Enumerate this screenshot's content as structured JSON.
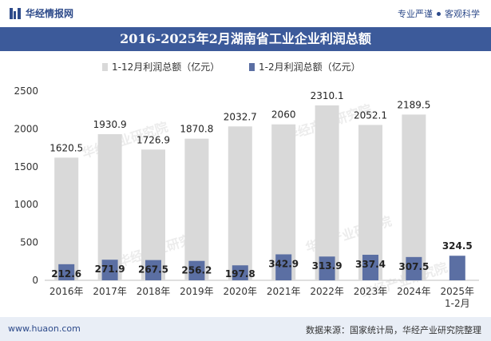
{
  "header": {
    "brand": "华经情报网",
    "slogan_left": "专业严谨",
    "slogan_right": "客观科学"
  },
  "title": "2016-2025年2月湖南省工业企业利润总额",
  "footer": {
    "site": "www.huaon.com",
    "source": "数据来源：国家统计局，华经产业研究院整理"
  },
  "watermark": "华经产业研究院",
  "chart_data": {
    "type": "bar",
    "categories": [
      "2016年",
      "2017年",
      "2018年",
      "2019年",
      "2020年",
      "2021年",
      "2022年",
      "2023年",
      "2024年",
      "2025年\n1-2月"
    ],
    "series": [
      {
        "name": "1-12月利润总额（亿元）",
        "color": "#d9d9d9",
        "values": [
          1620.5,
          1930.9,
          1726.9,
          1870.8,
          2032.7,
          2060,
          2310.1,
          2052.1,
          2189.5,
          null
        ],
        "labels": [
          "1620.5",
          "1930.9",
          "1726.9",
          "1870.8",
          "2032.7",
          "2060",
          "2310.1",
          "2052.1",
          "2189.5",
          ""
        ]
      },
      {
        "name": "1-2月利润总额（亿元）",
        "color": "#5b6fa3",
        "values": [
          212.6,
          271.9,
          267.5,
          256.2,
          197.8,
          342.9,
          313.9,
          337.4,
          307.5,
          324.5
        ],
        "labels": [
          "212.6",
          "271.9",
          "267.5",
          "256.2",
          "197.8",
          "342.9",
          "313.9",
          "337.4",
          "307.5",
          "324.5"
        ]
      }
    ],
    "ylim": [
      0,
      2500
    ],
    "yticks": [
      "0",
      "500",
      "1000",
      "1500",
      "2000",
      "2500"
    ],
    "legend_position": "top-center",
    "grid": false
  }
}
